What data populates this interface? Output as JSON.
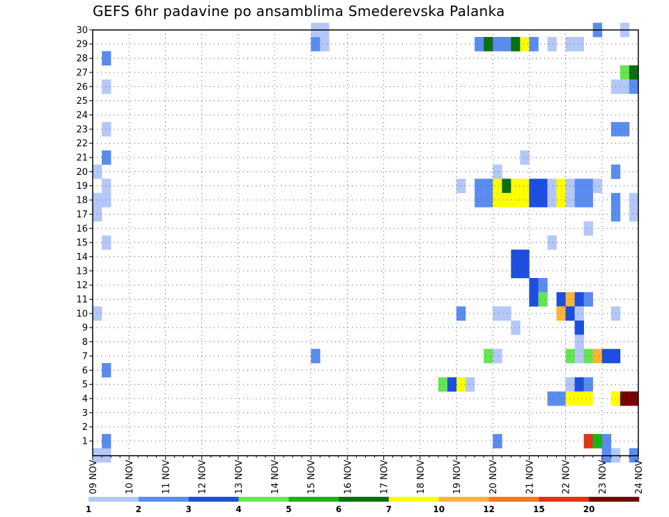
{
  "chart_data": {
    "type": "heatmap",
    "title": "GEFS 6hr padavine po ansamblima Smederevska Palanka",
    "x_tick_labels": [
      "09 NOV",
      "10 NOV",
      "11 NOV",
      "12 NOV",
      "13 NOV",
      "14 NOV",
      "15 NOV",
      "16 NOV",
      "17 NOV",
      "18 NOV",
      "19 NOV",
      "20 NOV",
      "21 NOV",
      "22 NOV",
      "23 NOV",
      "24 NOV"
    ],
    "y_tick_labels": [
      "1",
      "2",
      "3",
      "4",
      "5",
      "6",
      "7",
      "8",
      "9",
      "10",
      "11",
      "12",
      "13",
      "14",
      "15",
      "16",
      "17",
      "18",
      "19",
      "20",
      "21",
      "22",
      "23",
      "24",
      "25",
      "26",
      "27",
      "28",
      "29",
      "30"
    ],
    "x_unit": "6-hour step (4 per day), step 0 = 09 NOV 00Z",
    "y_unit": "ensemble member",
    "grid": true,
    "legend": {
      "placement": "bottom",
      "labels": [
        "1",
        "2",
        "3",
        "4",
        "5",
        "6",
        "7",
        "10",
        "12",
        "15",
        "20"
      ],
      "colors": [
        "#b4c8f8",
        "#5a8cf0",
        "#1e4ee0",
        "#64e650",
        "#14b814",
        "#0a7010",
        "#ffff00",
        "#ffb432",
        "#ff7814",
        "#e63214",
        "#780000"
      ]
    },
    "cells": [
      {
        "m": 0,
        "s": 0,
        "c": 1
      },
      {
        "m": 0,
        "s": 1,
        "c": 1
      },
      {
        "m": 1,
        "s": 1,
        "c": 2
      },
      {
        "m": 6,
        "s": 1,
        "c": 2
      },
      {
        "m": 10,
        "s": 0,
        "c": 1
      },
      {
        "m": 15,
        "s": 1,
        "c": 1
      },
      {
        "m": 18,
        "s": 0,
        "c": 1
      },
      {
        "m": 18,
        "s": 1,
        "c": 1
      },
      {
        "m": 17,
        "s": 0,
        "c": 1
      },
      {
        "m": 19,
        "s": 1,
        "c": 1
      },
      {
        "m": 20,
        "s": 0,
        "c": 1
      },
      {
        "m": 21,
        "s": 1,
        "c": 2
      },
      {
        "m": 23,
        "s": 1,
        "c": 1
      },
      {
        "m": 26,
        "s": 1,
        "c": 1
      },
      {
        "m": 28,
        "s": 1,
        "c": 2
      },
      {
        "m": 7,
        "s": 24,
        "c": 2
      },
      {
        "m": 29,
        "s": 24,
        "c": 2
      },
      {
        "m": 30,
        "s": 24,
        "c": 1
      },
      {
        "m": 29,
        "s": 25,
        "c": 1
      },
      {
        "m": 30,
        "s": 25,
        "c": 1
      },
      {
        "m": 29,
        "s": 42,
        "c": 2
      },
      {
        "m": 29,
        "s": 43,
        "c": 6
      },
      {
        "m": 29,
        "s": 44,
        "c": 2
      },
      {
        "m": 29,
        "s": 45,
        "c": 2
      },
      {
        "m": 29,
        "s": 46,
        "c": 6
      },
      {
        "m": 29,
        "s": 47,
        "c": 7
      },
      {
        "m": 29,
        "s": 48,
        "c": 2
      },
      {
        "m": 29,
        "s": 50,
        "c": 1
      },
      {
        "m": 29,
        "s": 52,
        "c": 1
      },
      {
        "m": 29,
        "s": 53,
        "c": 1
      },
      {
        "m": 30,
        "s": 55,
        "c": 2
      },
      {
        "m": 30,
        "s": 58,
        "c": 1
      },
      {
        "m": 27,
        "s": 58,
        "c": 4
      },
      {
        "m": 27,
        "s": 59,
        "c": 6
      },
      {
        "m": 26,
        "s": 57,
        "c": 1
      },
      {
        "m": 26,
        "s": 58,
        "c": 1
      },
      {
        "m": 26,
        "s": 59,
        "c": 2
      },
      {
        "m": 23,
        "s": 57,
        "c": 2
      },
      {
        "m": 23,
        "s": 58,
        "c": 2
      },
      {
        "m": 20,
        "s": 44,
        "c": 1
      },
      {
        "m": 21,
        "s": 47,
        "c": 1
      },
      {
        "m": 20,
        "s": 57,
        "c": 2
      },
      {
        "m": 19,
        "s": 40,
        "c": 1
      },
      {
        "m": 19,
        "s": 42,
        "c": 2
      },
      {
        "m": 19,
        "s": 43,
        "c": 2
      },
      {
        "m": 19,
        "s": 44,
        "c": 7
      },
      {
        "m": 19,
        "s": 45,
        "c": 6
      },
      {
        "m": 19,
        "s": 46,
        "c": 7
      },
      {
        "m": 19,
        "s": 47,
        "c": 7
      },
      {
        "m": 19,
        "s": 48,
        "c": 3
      },
      {
        "m": 19,
        "s": 49,
        "c": 3
      },
      {
        "m": 19,
        "s": 50,
        "c": 1
      },
      {
        "m": 19,
        "s": 51,
        "c": 7
      },
      {
        "m": 19,
        "s": 52,
        "c": 1
      },
      {
        "m": 19,
        "s": 53,
        "c": 2
      },
      {
        "m": 19,
        "s": 54,
        "c": 2
      },
      {
        "m": 19,
        "s": 55,
        "c": 1
      },
      {
        "m": 18,
        "s": 42,
        "c": 2
      },
      {
        "m": 18,
        "s": 43,
        "c": 2
      },
      {
        "m": 18,
        "s": 44,
        "c": 7
      },
      {
        "m": 18,
        "s": 45,
        "c": 7
      },
      {
        "m": 18,
        "s": 46,
        "c": 7
      },
      {
        "m": 18,
        "s": 47,
        "c": 7
      },
      {
        "m": 18,
        "s": 48,
        "c": 3
      },
      {
        "m": 18,
        "s": 49,
        "c": 3
      },
      {
        "m": 18,
        "s": 50,
        "c": 1
      },
      {
        "m": 18,
        "s": 51,
        "c": 7
      },
      {
        "m": 18,
        "s": 52,
        "c": 1
      },
      {
        "m": 18,
        "s": 53,
        "c": 2
      },
      {
        "m": 18,
        "s": 54,
        "c": 2
      },
      {
        "m": 18,
        "s": 57,
        "c": 2
      },
      {
        "m": 17,
        "s": 57,
        "c": 2
      },
      {
        "m": 17,
        "s": 59,
        "c": 1
      },
      {
        "m": 18,
        "s": 59,
        "c": 1
      },
      {
        "m": 16,
        "s": 54,
        "c": 1
      },
      {
        "m": 15,
        "s": 50,
        "c": 1
      },
      {
        "m": 14,
        "s": 46,
        "c": 3
      },
      {
        "m": 14,
        "s": 47,
        "c": 3
      },
      {
        "m": 13,
        "s": 46,
        "c": 3
      },
      {
        "m": 13,
        "s": 47,
        "c": 3
      },
      {
        "m": 12,
        "s": 48,
        "c": 3
      },
      {
        "m": 12,
        "s": 49,
        "c": 2
      },
      {
        "m": 11,
        "s": 48,
        "c": 3
      },
      {
        "m": 11,
        "s": 49,
        "c": 4
      },
      {
        "m": 11,
        "s": 51,
        "c": 3
      },
      {
        "m": 11,
        "s": 52,
        "c": 8
      },
      {
        "m": 11,
        "s": 53,
        "c": 3
      },
      {
        "m": 11,
        "s": 54,
        "c": 2
      },
      {
        "m": 10,
        "s": 40,
        "c": 2
      },
      {
        "m": 10,
        "s": 44,
        "c": 1
      },
      {
        "m": 10,
        "s": 45,
        "c": 1
      },
      {
        "m": 10,
        "s": 51,
        "c": 8
      },
      {
        "m": 10,
        "s": 52,
        "c": 3
      },
      {
        "m": 10,
        "s": 53,
        "c": 1
      },
      {
        "m": 10,
        "s": 57,
        "c": 1
      },
      {
        "m": 9,
        "s": 46,
        "c": 1
      },
      {
        "m": 9,
        "s": 53,
        "c": 3
      },
      {
        "m": 8,
        "s": 53,
        "c": 1
      },
      {
        "m": 7,
        "s": 53,
        "c": 1
      },
      {
        "m": 7,
        "s": 43,
        "c": 4
      },
      {
        "m": 7,
        "s": 44,
        "c": 1
      },
      {
        "m": 7,
        "s": 52,
        "c": 4
      },
      {
        "m": 7,
        "s": 54,
        "c": 4
      },
      {
        "m": 7,
        "s": 55,
        "c": 8
      },
      {
        "m": 7,
        "s": 56,
        "c": 3
      },
      {
        "m": 7,
        "s": 57,
        "c": 3
      },
      {
        "m": 5,
        "s": 38,
        "c": 4
      },
      {
        "m": 5,
        "s": 39,
        "c": 3
      },
      {
        "m": 5,
        "s": 40,
        "c": 7
      },
      {
        "m": 5,
        "s": 41,
        "c": 1
      },
      {
        "m": 5,
        "s": 52,
        "c": 1
      },
      {
        "m": 5,
        "s": 53,
        "c": 3
      },
      {
        "m": 5,
        "s": 54,
        "c": 2
      },
      {
        "m": 4,
        "s": 50,
        "c": 2
      },
      {
        "m": 4,
        "s": 51,
        "c": 2
      },
      {
        "m": 4,
        "s": 52,
        "c": 7
      },
      {
        "m": 4,
        "s": 53,
        "c": 7
      },
      {
        "m": 4,
        "s": 54,
        "c": 7
      },
      {
        "m": 4,
        "s": 57,
        "c": 7
      },
      {
        "m": 4,
        "s": 58,
        "c": 11
      },
      {
        "m": 4,
        "s": 59,
        "c": 11
      },
      {
        "m": 1,
        "s": 44,
        "c": 2
      },
      {
        "m": 1,
        "s": 54,
        "c": 10
      },
      {
        "m": 1,
        "s": 55,
        "c": 5
      },
      {
        "m": 1,
        "s": 56,
        "c": 2
      },
      {
        "m": 0,
        "s": 56,
        "c": 2
      },
      {
        "m": 0,
        "s": 57,
        "c": 1
      },
      {
        "m": 0,
        "s": 59,
        "c": 2
      }
    ]
  }
}
